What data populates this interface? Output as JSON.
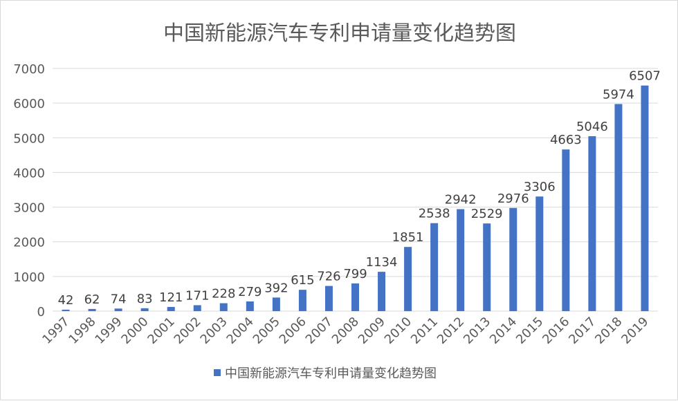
{
  "chart_data": {
    "type": "bar",
    "title": "中国新能源汽车专利申请量变化趋势图",
    "xlabel": "",
    "ylabel": "",
    "categories": [
      "1997",
      "1998",
      "1999",
      "2000",
      "2001",
      "2002",
      "2003",
      "2004",
      "2005",
      "2006",
      "2007",
      "2008",
      "2009",
      "2010",
      "2011",
      "2012",
      "2013",
      "2014",
      "2015",
      "2016",
      "2017",
      "2018",
      "2019"
    ],
    "series": [
      {
        "name": "中国新能源汽车专利申请量变化趋势图",
        "values": [
          42,
          62,
          74,
          83,
          121,
          171,
          228,
          279,
          392,
          615,
          726,
          799,
          1134,
          1851,
          2538,
          2942,
          2529,
          2976,
          3306,
          4663,
          5046,
          5974,
          6507
        ],
        "color": "#4472c4"
      }
    ],
    "ylim": [
      0,
      7000
    ],
    "yticks": [
      "0",
      "1000",
      "2000",
      "3000",
      "4000",
      "5000",
      "6000",
      "7000"
    ],
    "grid": true,
    "legend": "bottom",
    "data_labels": true
  }
}
